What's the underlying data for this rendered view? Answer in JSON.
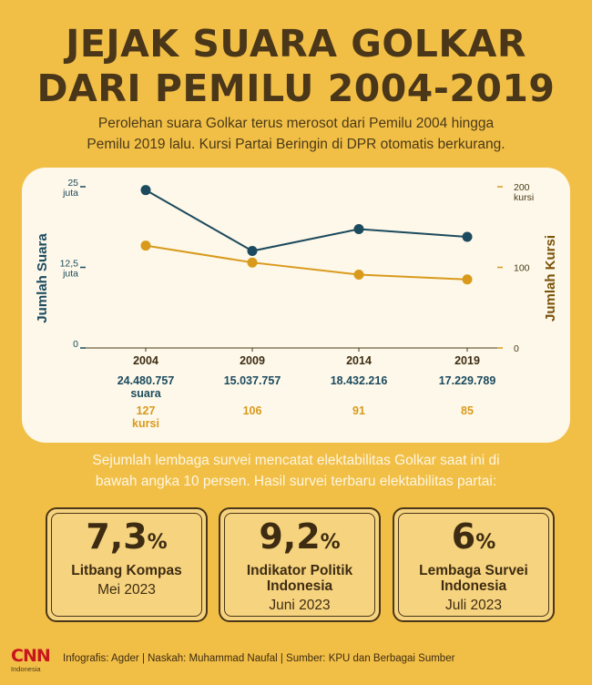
{
  "title": {
    "line1": "JEJAK SUARA GOLKAR",
    "line2": "DARI PEMILU 2004-2019"
  },
  "intro": {
    "line1": "Perolehan suara Golkar terus merosot dari Pemilu 2004 hingga",
    "line2": "Pemilu 2019 lalu. Kursi Partai Beringin di DPR otomatis berkurang."
  },
  "chart_data": {
    "type": "line",
    "categories": [
      "2004",
      "2009",
      "2014",
      "2019"
    ],
    "series": [
      {
        "name": "Jumlah Suara",
        "axis": "left",
        "color": "#1c4a5e",
        "values": [
          24480757,
          15037757,
          18432216,
          17229789
        ],
        "labels": [
          "24.480.757",
          "15.037.757",
          "18.432.216",
          "17.229.789"
        ],
        "unit": "suara"
      },
      {
        "name": "Jumlah Kursi",
        "axis": "right",
        "color": "#d99a1c",
        "values": [
          127,
          106,
          91,
          85
        ],
        "labels": [
          "127",
          "106",
          "91",
          "85"
        ],
        "unit": "kursi"
      }
    ],
    "left_axis": {
      "label": "Jumlah Suara",
      "ylim": [
        0,
        25000000
      ],
      "ticks": [
        {
          "value": 0,
          "text": "0",
          "sub": ""
        },
        {
          "value": 12500000,
          "text": "12,5",
          "sub": "juta"
        },
        {
          "value": 25000000,
          "text": "25",
          "sub": "juta"
        }
      ]
    },
    "right_axis": {
      "label": "Jumlah Kursi",
      "ylim": [
        0,
        200
      ],
      "ticks": [
        {
          "value": 0,
          "text": "0",
          "sub": ""
        },
        {
          "value": 100,
          "text": "100",
          "sub": ""
        },
        {
          "value": 200,
          "text": "200",
          "sub": "kursi"
        }
      ]
    }
  },
  "survey": {
    "intro_line1": "Sejumlah lembaga survei mencatat elektabilitas Golkar saat ini di",
    "intro_line2": "bawah angka 10 persen. Hasil survei terbaru elektabilitas partai:",
    "cards": [
      {
        "value": "7,3",
        "unit": "%",
        "org_line1": "Litbang Kompas",
        "org_line2": "",
        "date": "Mei 2023"
      },
      {
        "value": "9,2",
        "unit": "%",
        "org_line1": "Indikator Politik",
        "org_line2": "Indonesia",
        "date": "Juni 2023"
      },
      {
        "value": "6",
        "unit": "%",
        "org_line1": "Lembaga Survei",
        "org_line2": "Indonesia",
        "date": "Juli 2023"
      }
    ]
  },
  "footer": {
    "logo_text": "CNN",
    "logo_sub": "Indonesia",
    "credits": "Infografis: Agder | Naskah: Muhammad Naufal | Sumber: KPU dan Berbagai Sumber"
  },
  "colors": {
    "background": "#f2bf46",
    "suara": "#1c4a5e",
    "kursi": "#d99a1c",
    "text_dark": "#4a3618",
    "card_bg": "#f6d37e",
    "logo_red": "#c8161d"
  }
}
